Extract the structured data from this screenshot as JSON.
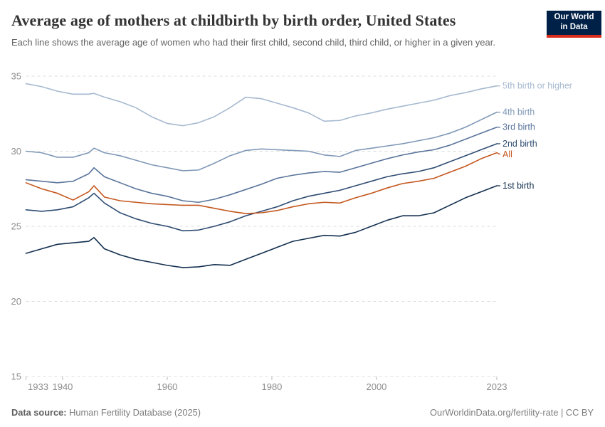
{
  "header": {
    "title": "Average age of mothers at childbirth by birth order, United States",
    "subtitle": "Each line shows the average age of women who had their first child, second child, third child, or higher in a given year.",
    "logo": {
      "line1": "Our World",
      "line2": "in Data",
      "bg_color": "#002147",
      "stripe_color": "#d92c1d"
    }
  },
  "footer": {
    "datasource_label": "Data source:",
    "datasource_value": " Human Fertility Database (2025)",
    "credit": "OurWorldinData.org/fertility-rate | CC BY"
  },
  "chart_data": {
    "type": "line",
    "title": "Average age of mothers at childbirth by birth order, United States",
    "xlabel": "",
    "ylabel": "",
    "xlim": [
      1933,
      2023
    ],
    "ylim": [
      15,
      35
    ],
    "xticks": [
      1933,
      1940,
      1960,
      1980,
      2000,
      2023
    ],
    "yticks": [
      35,
      30,
      25,
      20,
      15
    ],
    "grid": "horizontal-dashed",
    "legend_position": "right-of-line-ends",
    "x": [
      1933,
      1936,
      1939,
      1942,
      1945,
      1946,
      1948,
      1951,
      1954,
      1957,
      1960,
      1963,
      1966,
      1969,
      1972,
      1975,
      1978,
      1981,
      1984,
      1987,
      1990,
      1993,
      1996,
      1999,
      2002,
      2005,
      2008,
      2011,
      2014,
      2017,
      2020,
      2023
    ],
    "series": [
      {
        "name": "5th birth or higher",
        "color": "#a6b9cf",
        "values": [
          34.5,
          34.3,
          34.0,
          33.8,
          33.8,
          33.85,
          33.6,
          33.3,
          32.9,
          32.3,
          31.85,
          31.7,
          31.9,
          32.3,
          32.9,
          33.6,
          33.5,
          33.2,
          32.9,
          32.55,
          32.0,
          32.05,
          32.35,
          32.55,
          32.8,
          33.0,
          33.2,
          33.4,
          33.7,
          33.9,
          34.15,
          34.35
        ]
      },
      {
        "name": "4th birth",
        "color": "#7f98b7",
        "values": [
          30.0,
          29.9,
          29.6,
          29.6,
          29.9,
          30.2,
          29.9,
          29.7,
          29.4,
          29.1,
          28.9,
          28.7,
          28.75,
          29.2,
          29.7,
          30.05,
          30.15,
          30.1,
          30.05,
          30.0,
          29.75,
          29.65,
          30.05,
          30.2,
          30.35,
          30.5,
          30.7,
          30.9,
          31.2,
          31.6,
          32.1,
          32.6
        ]
      },
      {
        "name": "3rd birth",
        "color": "#59749b",
        "values": [
          28.1,
          28.0,
          27.9,
          28.0,
          28.5,
          28.9,
          28.3,
          27.9,
          27.5,
          27.2,
          27.0,
          26.7,
          26.6,
          26.8,
          27.1,
          27.45,
          27.8,
          28.2,
          28.4,
          28.55,
          28.65,
          28.6,
          28.9,
          29.2,
          29.5,
          29.75,
          29.95,
          30.1,
          30.4,
          30.8,
          31.2,
          31.6
        ]
      },
      {
        "name": "2nd birth",
        "color": "#2e4c72",
        "values": [
          26.1,
          26.0,
          26.1,
          26.3,
          26.9,
          27.2,
          26.55,
          25.9,
          25.5,
          25.2,
          25.0,
          24.7,
          24.75,
          25.0,
          25.3,
          25.7,
          26.0,
          26.3,
          26.7,
          27.0,
          27.2,
          27.4,
          27.7,
          28.0,
          28.3,
          28.5,
          28.65,
          28.9,
          29.3,
          29.7,
          30.1,
          30.5
        ]
      },
      {
        "name": "All",
        "color": "#c4571e",
        "values": [
          27.9,
          27.5,
          27.2,
          26.75,
          27.3,
          27.7,
          26.95,
          26.7,
          26.6,
          26.5,
          26.45,
          26.4,
          26.4,
          26.2,
          26.0,
          25.85,
          25.9,
          26.05,
          26.3,
          26.5,
          26.6,
          26.55,
          26.9,
          27.2,
          27.55,
          27.85,
          28.0,
          28.2,
          28.6,
          29.0,
          29.5,
          29.9
        ]
      },
      {
        "name": "1st birth",
        "color": "#132f4f",
        "values": [
          23.2,
          23.5,
          23.8,
          23.9,
          24.0,
          24.25,
          23.5,
          23.1,
          22.8,
          22.6,
          22.4,
          22.25,
          22.3,
          22.45,
          22.4,
          22.8,
          23.2,
          23.6,
          24.0,
          24.2,
          24.4,
          24.35,
          24.6,
          25.0,
          25.4,
          25.7,
          25.7,
          25.9,
          26.4,
          26.9,
          27.3,
          27.7
        ]
      }
    ]
  }
}
